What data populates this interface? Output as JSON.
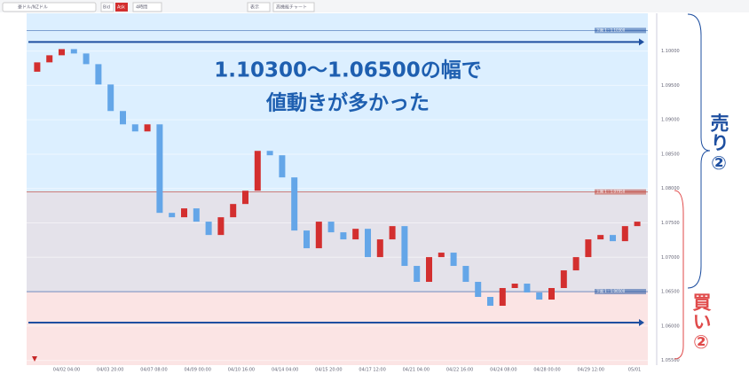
{
  "toolbar": {
    "pair": "豪ドル/NZドル",
    "bid": "Bid",
    "ask": "Ask",
    "period": "4時間",
    "view": "表示",
    "advanced": "高機能チャート"
  },
  "annotations": {
    "line1": "1.10300〜1.06500の幅で",
    "line2": "値動きが多かった",
    "sell": "売り②",
    "buy": "買い②"
  },
  "chart_data": {
    "type": "candlestick",
    "ylim": [
      1.0543,
      1.1055
    ],
    "yticks": [
      {
        "value": 1.1,
        "label": "1.10000"
      },
      {
        "value": 1.095,
        "label": "1.09500"
      },
      {
        "value": 1.09,
        "label": "1.09000"
      },
      {
        "value": 1.085,
        "label": "1.08500"
      },
      {
        "value": 1.08,
        "label": "1.08000"
      },
      {
        "value": 1.075,
        "label": "1.07500"
      },
      {
        "value": 1.07,
        "label": "1.07000"
      },
      {
        "value": 1.065,
        "label": "1.06500"
      },
      {
        "value": 1.06,
        "label": "1.06000"
      },
      {
        "value": 1.055,
        "label": "1.05500"
      }
    ],
    "x_labels": [
      "04/02 04:00",
      "04/03 20:00",
      "04/07 08:00",
      "04/09 00:00",
      "04/10 16:00",
      "04/14 04:00",
      "04/15 20:00",
      "04/17 12:00",
      "04/21 04:00",
      "04/22 16:00",
      "04/24 08:00",
      "04/28 00:00",
      "04/29 12:00",
      "05/01"
    ],
    "levels": [
      {
        "value": 1.103,
        "label": "下限 1 : 1.10300",
        "color": "#1e4fa0"
      },
      {
        "value": 1.0795,
        "label": "上限 1 : 1.07950",
        "color": "#c0392b"
      },
      {
        "value": 1.065,
        "label": "下限 1 : 1.06500",
        "color": "#1e4fa0"
      }
    ],
    "up_color": "#d32f2f",
    "down_color": "#64a6e8",
    "open": [
      1.097,
      1.09836,
      1.09939,
      1.10029,
      1.09965,
      1.0981,
      1.09514,
      1.09128,
      1.08934,
      1.08831,
      1.08934,
      1.07646,
      1.07582,
      1.07711,
      1.07518,
      1.07324,
      1.07582,
      1.07775,
      1.07968,
      1.08548,
      1.08484,
      1.08162,
      1.07389,
      1.07131,
      1.07518,
      1.07363,
      1.0726,
      1.07414,
      1.07002,
      1.0726,
      1.07453,
      1.06874,
      1.06642,
      1.07002,
      1.07067,
      1.06874,
      1.06642,
      1.06423,
      1.06294,
      1.06552,
      1.06616,
      1.06487,
      1.06384,
      1.06552,
      1.06809,
      1.07002,
      1.0726,
      1.07324,
      1.07234,
      1.07453
    ],
    "close": [
      1.09836,
      1.09939,
      1.10029,
      1.09965,
      1.0981,
      1.09514,
      1.09128,
      1.08934,
      1.08831,
      1.08934,
      1.07646,
      1.07582,
      1.07711,
      1.07518,
      1.07324,
      1.07582,
      1.07775,
      1.07968,
      1.08548,
      1.08484,
      1.08162,
      1.07389,
      1.07131,
      1.07518,
      1.07363,
      1.0726,
      1.07414,
      1.07002,
      1.0726,
      1.07453,
      1.06874,
      1.06642,
      1.07002,
      1.07067,
      1.06874,
      1.06642,
      1.06423,
      1.06294,
      1.06552,
      1.06616,
      1.06487,
      1.06384,
      1.06552,
      1.06809,
      1.07002,
      1.0726,
      1.07324,
      1.07234,
      1.07453,
      1.07518
    ]
  }
}
